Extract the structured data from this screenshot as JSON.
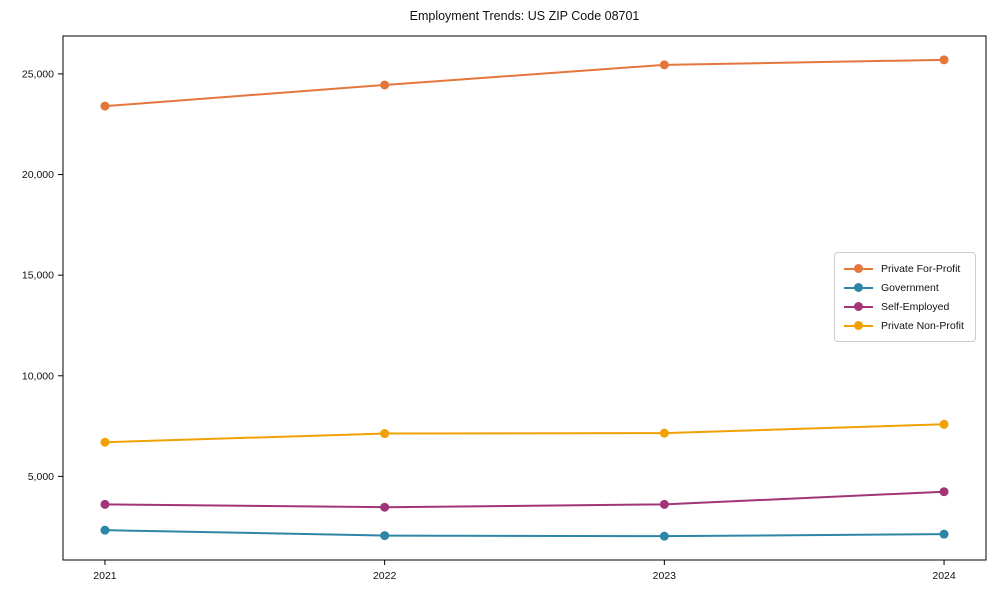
{
  "title": "Employment Trends: US ZIP Code 08701",
  "chart_data": {
    "type": "line",
    "x": [
      2021,
      2022,
      2023,
      2024
    ],
    "x_tick_labels": [
      "2021",
      "2022",
      "2023",
      "2024"
    ],
    "series": [
      {
        "name": "Private For-Profit",
        "color": "#E4763C",
        "values": [
          23400,
          24450,
          25450,
          25700
        ]
      },
      {
        "name": "Government",
        "color": "#2E86A6",
        "values": [
          2330,
          2060,
          2030,
          2130
        ]
      },
      {
        "name": "Self-Employed",
        "color": "#A23577",
        "values": [
          3610,
          3470,
          3610,
          4240
        ]
      },
      {
        "name": "Private Non-Profit",
        "color": "#F2A104",
        "values": [
          6700,
          7130,
          7150,
          7590
        ]
      }
    ],
    "yticks": [
      5000,
      10000,
      15000,
      20000,
      25000
    ],
    "ytick_labels": [
      "5,000",
      "10,000",
      "15,000",
      "20,000",
      "25,000"
    ],
    "xlim": [
      2020.85,
      2024.15
    ],
    "ylim": [
      846,
      26884
    ],
    "xlabel": "",
    "ylabel": "",
    "grid": false,
    "marker": "circle",
    "legend_position": "center-right",
    "spine_color": "#000000",
    "background_color": "#ffffff"
  }
}
